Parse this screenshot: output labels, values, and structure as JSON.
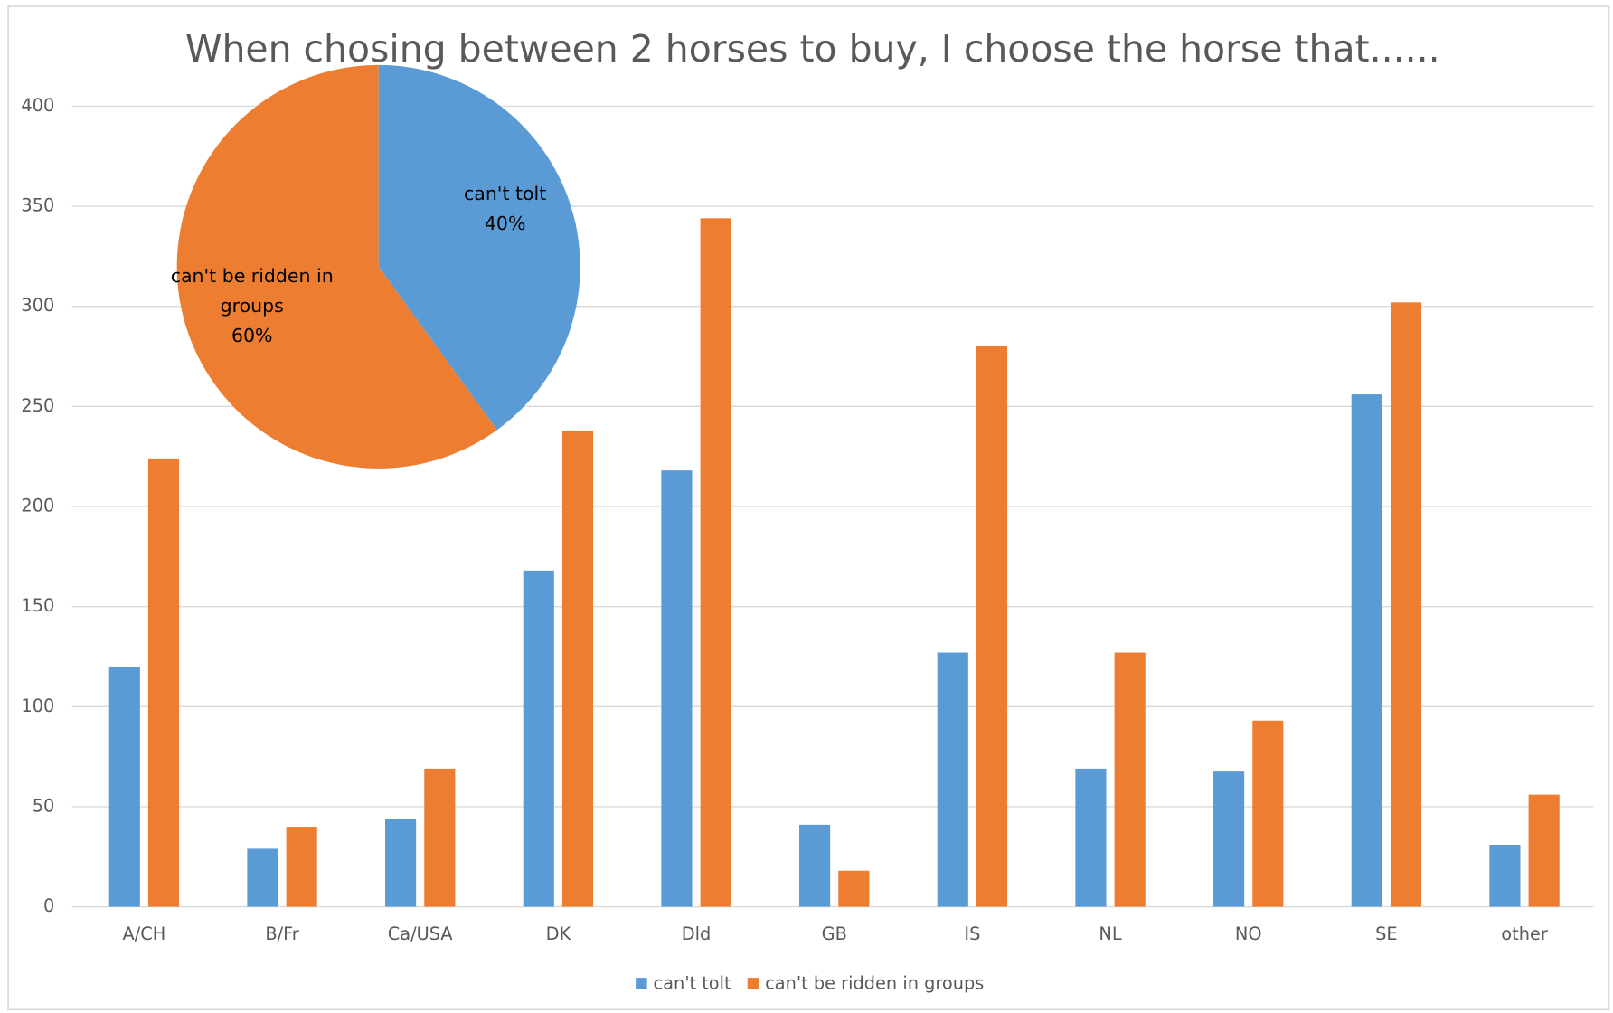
{
  "chart_data": [
    {
      "type": "bar",
      "title": "When chosing between 2 horses to buy, I choose the horse that......",
      "categories": [
        "A/CH",
        "B/Fr",
        "Ca/USA",
        "DK",
        "Dld",
        "GB",
        "IS",
        "NL",
        "NO",
        "SE",
        "other"
      ],
      "series": [
        {
          "name": "can't tolt",
          "color": "#5b9bd5",
          "values": [
            120,
            29,
            44,
            168,
            218,
            41,
            127,
            69,
            68,
            256,
            31
          ]
        },
        {
          "name": "can't be ridden in groups",
          "color": "#ed7d31",
          "values": [
            224,
            40,
            69,
            238,
            344,
            18,
            280,
            127,
            93,
            302,
            56
          ]
        }
      ],
      "ylim": [
        0,
        400
      ],
      "yticks": [
        0,
        50,
        100,
        150,
        200,
        250,
        300,
        350,
        400
      ],
      "grid": true,
      "legend": "bottom"
    },
    {
      "type": "pie",
      "categories": [
        "can't tolt",
        "can't be ridden in groups"
      ],
      "values": [
        40,
        60
      ],
      "value_labels": [
        "40%",
        "60%"
      ],
      "colors": [
        "#5b9bd5",
        "#ed7d31"
      ]
    }
  ]
}
